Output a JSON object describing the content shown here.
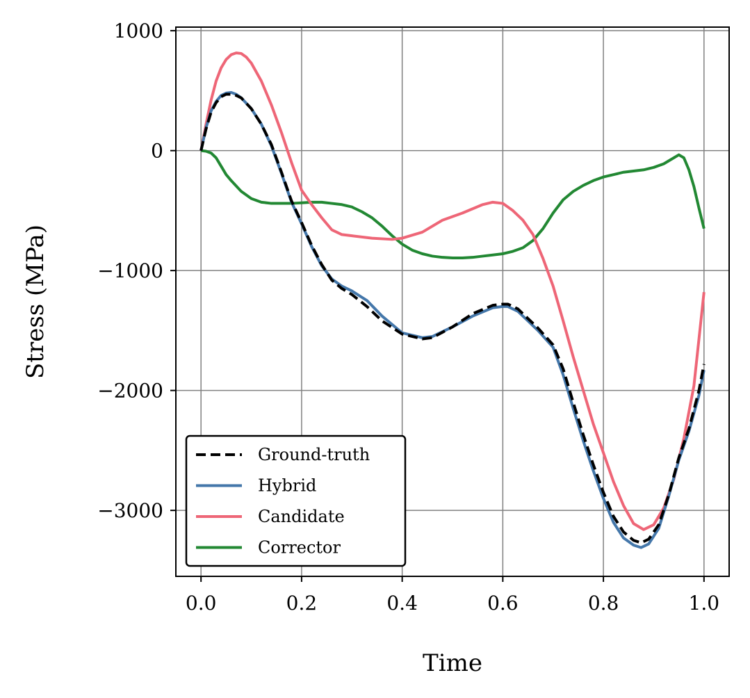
{
  "chart_data": {
    "type": "line",
    "title": "",
    "xlabel": "Time",
    "ylabel": "Stress (MPa)",
    "xlim": [
      -0.05,
      1.05
    ],
    "ylim": [
      -3550,
      1030
    ],
    "grid": true,
    "legend_position": "lower-left",
    "x_ticks": [
      0.0,
      0.2,
      0.4,
      0.6,
      0.8,
      1.0
    ],
    "x_tick_labels": [
      "0.0",
      "0.2",
      "0.4",
      "0.6",
      "0.8",
      "1.0"
    ],
    "y_ticks": [
      1000,
      0,
      -1000,
      -2000,
      -3000
    ],
    "y_tick_labels": [
      "1000",
      "0",
      "−1000",
      "−2000",
      "−3000"
    ],
    "series": [
      {
        "name": "Ground-truth",
        "color": "#000000",
        "style": "dashed",
        "x": [
          0.0,
          0.01,
          0.02,
          0.03,
          0.04,
          0.05,
          0.06,
          0.07,
          0.08,
          0.1,
          0.12,
          0.14,
          0.16,
          0.18,
          0.2,
          0.22,
          0.24,
          0.26,
          0.28,
          0.3,
          0.33,
          0.36,
          0.4,
          0.44,
          0.46,
          0.5,
          0.54,
          0.58,
          0.6,
          0.61,
          0.63,
          0.65,
          0.67,
          0.7,
          0.72,
          0.74,
          0.76,
          0.78,
          0.8,
          0.82,
          0.84,
          0.86,
          0.875,
          0.89,
          0.91,
          0.93,
          0.95,
          0.97,
          0.99,
          1.0
        ],
        "y": [
          0,
          180,
          320,
          400,
          450,
          470,
          470,
          460,
          440,
          350,
          220,
          50,
          -180,
          -420,
          -600,
          -790,
          -950,
          -1080,
          -1150,
          -1200,
          -1300,
          -1420,
          -1530,
          -1570,
          -1560,
          -1470,
          -1360,
          -1290,
          -1280,
          -1280,
          -1320,
          -1400,
          -1480,
          -1620,
          -1820,
          -2100,
          -2370,
          -2620,
          -2850,
          -3050,
          -3180,
          -3250,
          -3270,
          -3240,
          -3120,
          -2870,
          -2560,
          -2320,
          -2000,
          -1780
        ]
      },
      {
        "name": "Hybrid",
        "color": "#4477aa",
        "style": "solid",
        "x": [
          0.0,
          0.01,
          0.02,
          0.03,
          0.04,
          0.05,
          0.06,
          0.07,
          0.08,
          0.1,
          0.12,
          0.14,
          0.16,
          0.18,
          0.2,
          0.22,
          0.24,
          0.26,
          0.28,
          0.3,
          0.33,
          0.36,
          0.4,
          0.44,
          0.46,
          0.5,
          0.54,
          0.58,
          0.6,
          0.61,
          0.63,
          0.65,
          0.67,
          0.7,
          0.72,
          0.74,
          0.76,
          0.78,
          0.8,
          0.82,
          0.84,
          0.86,
          0.875,
          0.89,
          0.91,
          0.93,
          0.95,
          0.97,
          0.99,
          1.0
        ],
        "y": [
          0,
          190,
          330,
          410,
          460,
          480,
          485,
          470,
          440,
          350,
          220,
          40,
          -190,
          -430,
          -610,
          -800,
          -960,
          -1070,
          -1130,
          -1170,
          -1250,
          -1380,
          -1520,
          -1560,
          -1550,
          -1470,
          -1380,
          -1310,
          -1300,
          -1300,
          -1340,
          -1420,
          -1500,
          -1640,
          -1870,
          -2150,
          -2420,
          -2670,
          -2900,
          -3100,
          -3230,
          -3290,
          -3310,
          -3280,
          -3150,
          -2880,
          -2580,
          -2340,
          -2040,
          -1830
        ]
      },
      {
        "name": "Candidate",
        "color": "#ee6677",
        "style": "solid",
        "x": [
          0.0,
          0.01,
          0.02,
          0.03,
          0.04,
          0.05,
          0.06,
          0.07,
          0.08,
          0.09,
          0.1,
          0.12,
          0.14,
          0.16,
          0.18,
          0.2,
          0.22,
          0.24,
          0.26,
          0.28,
          0.3,
          0.34,
          0.38,
          0.4,
          0.44,
          0.48,
          0.52,
          0.56,
          0.58,
          0.6,
          0.62,
          0.64,
          0.66,
          0.68,
          0.7,
          0.72,
          0.74,
          0.76,
          0.78,
          0.8,
          0.82,
          0.84,
          0.86,
          0.88,
          0.9,
          0.92,
          0.94,
          0.96,
          0.98,
          1.0
        ],
        "y": [
          0,
          220,
          420,
          580,
          690,
          760,
          800,
          815,
          810,
          780,
          730,
          580,
          380,
          150,
          -100,
          -330,
          -450,
          -560,
          -660,
          -700,
          -710,
          -730,
          -740,
          -730,
          -680,
          -580,
          -520,
          -450,
          -430,
          -440,
          -500,
          -580,
          -700,
          -900,
          -1130,
          -1420,
          -1720,
          -2000,
          -2280,
          -2520,
          -2760,
          -2960,
          -3110,
          -3160,
          -3120,
          -2980,
          -2740,
          -2400,
          -1960,
          -1180
        ]
      },
      {
        "name": "Corrector",
        "color": "#228833",
        "style": "solid",
        "x": [
          0.0,
          0.01,
          0.02,
          0.03,
          0.04,
          0.05,
          0.06,
          0.08,
          0.1,
          0.12,
          0.14,
          0.16,
          0.18,
          0.2,
          0.22,
          0.24,
          0.26,
          0.28,
          0.3,
          0.32,
          0.34,
          0.36,
          0.38,
          0.4,
          0.42,
          0.44,
          0.46,
          0.48,
          0.5,
          0.52,
          0.54,
          0.56,
          0.58,
          0.6,
          0.62,
          0.64,
          0.66,
          0.68,
          0.7,
          0.72,
          0.74,
          0.76,
          0.78,
          0.8,
          0.82,
          0.84,
          0.86,
          0.88,
          0.9,
          0.92,
          0.94,
          0.95,
          0.96,
          0.97,
          0.98,
          0.99,
          1.0
        ],
        "y": [
          0,
          -5,
          -20,
          -60,
          -130,
          -200,
          -250,
          -340,
          -400,
          -430,
          -440,
          -440,
          -440,
          -435,
          -430,
          -430,
          -440,
          -450,
          -470,
          -510,
          -560,
          -630,
          -710,
          -780,
          -830,
          -860,
          -880,
          -890,
          -895,
          -895,
          -890,
          -880,
          -870,
          -860,
          -840,
          -810,
          -750,
          -650,
          -520,
          -410,
          -340,
          -290,
          -250,
          -220,
          -200,
          -180,
          -170,
          -160,
          -140,
          -110,
          -60,
          -35,
          -60,
          -160,
          -300,
          -480,
          -650
        ]
      }
    ]
  }
}
